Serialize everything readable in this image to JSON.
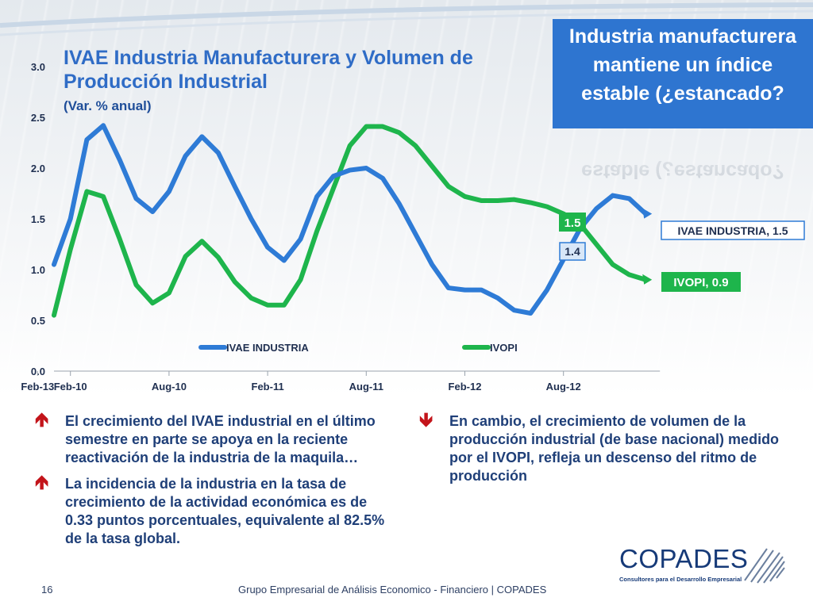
{
  "slide": {
    "title": "IVAE Industria Manufacturera y Volumen de Producción Industrial",
    "subtitle": "(Var. % anual)",
    "callout": "Industria manufacturera mantiene un índice estable (¿estancado?",
    "page_number": "16",
    "footer": "Grupo Empresarial de Análisis Economico - Financiero | COPADES",
    "logo_text": "COPADES",
    "logo_tagline": "Consultores para el Desarrollo Empresarial"
  },
  "bullets_left": [
    {
      "arrow": "up",
      "text": "El crecimiento del IVAE industrial en el último semestre en parte se apoya en la reciente reactivación de la industria de la maquila…"
    },
    {
      "arrow": "up",
      "text": "La incidencia de la industria en la tasa de crecimiento de la actividad económica es de 0.33 puntos porcentuales, equivalente al 82.5% de la tasa global."
    }
  ],
  "bullets_right": [
    {
      "arrow": "down",
      "text": "En cambio, el crecimiento de volumen de la producción industrial (de base nacional) medido por el IVOPI, refleja un descenso del ritmo de producción"
    }
  ],
  "colors": {
    "blue": "#2e7bd6",
    "green": "#1eb54c",
    "title": "#2f6cc6",
    "callout_bg": "#2e75d0",
    "arrow": "#c3141a"
  },
  "chart_data": {
    "type": "line",
    "x": [
      "Jan-10",
      "Feb-10",
      "Mar-10",
      "Apr-10",
      "May-10",
      "Jun-10",
      "Jul-10",
      "Aug-10",
      "Sep-10",
      "Oct-10",
      "Nov-10",
      "Dec-10",
      "Jan-11",
      "Feb-11",
      "Mar-11",
      "Apr-11",
      "May-11",
      "Jun-11",
      "Jul-11",
      "Aug-11",
      "Sep-11",
      "Oct-11",
      "Nov-11",
      "Dec-11",
      "Jan-12",
      "Feb-12",
      "Mar-12",
      "Apr-12",
      "May-12",
      "Jun-12",
      "Jul-12",
      "Aug-12",
      "Sep-12",
      "Oct-12",
      "Nov-12",
      "Dec-12",
      "Jan-13"
    ],
    "x_ticks": [
      "Feb-10",
      "Aug-10",
      "Feb-11",
      "Aug-11",
      "Feb-12",
      "Aug-12",
      "Feb-13"
    ],
    "y_ticks": [
      "0.0",
      "0.5",
      "1.0",
      "1.5",
      "2.0",
      "2.5",
      "3.0"
    ],
    "ylim": [
      0,
      3.0
    ],
    "series": [
      {
        "name": "IVAE INDUSTRIA",
        "color": "#2e7bd6",
        "values": [
          1.05,
          1.5,
          2.28,
          2.42,
          2.08,
          1.7,
          1.57,
          1.77,
          2.12,
          2.31,
          2.15,
          1.82,
          1.5,
          1.22,
          1.09,
          1.3,
          1.72,
          1.92,
          1.98,
          2.0,
          1.9,
          1.65,
          1.35,
          1.05,
          0.82,
          0.8,
          0.8,
          0.72,
          0.6,
          0.57,
          0.8,
          1.1,
          1.4,
          1.6,
          1.73,
          1.7,
          1.55
        ]
      },
      {
        "name": "IVOPI",
        "color": "#1eb54c",
        "values": [
          0.55,
          1.2,
          1.77,
          1.72,
          1.3,
          0.85,
          0.67,
          0.77,
          1.13,
          1.28,
          1.12,
          0.88,
          0.72,
          0.65,
          0.65,
          0.9,
          1.38,
          1.8,
          2.22,
          2.41,
          2.41,
          2.35,
          2.22,
          2.02,
          1.82,
          1.72,
          1.68,
          1.68,
          1.69,
          1.66,
          1.62,
          1.55,
          1.45,
          1.25,
          1.05,
          0.95,
          0.9
        ]
      }
    ],
    "data_labels": [
      {
        "series": "IVOPI",
        "text": "1.5"
      },
      {
        "series": "IVAE INDUSTRIA",
        "text": "1.4"
      }
    ],
    "end_labels": [
      {
        "series": "IVAE INDUSTRIA",
        "text": "IVAE INDUSTRIA, 1.5"
      },
      {
        "series": "IVOPI",
        "text": "IVOPI, 0.9"
      }
    ],
    "legend": {
      "position": "bottom-inside",
      "items": [
        "IVAE INDUSTRIA",
        "IVOPI"
      ]
    }
  }
}
